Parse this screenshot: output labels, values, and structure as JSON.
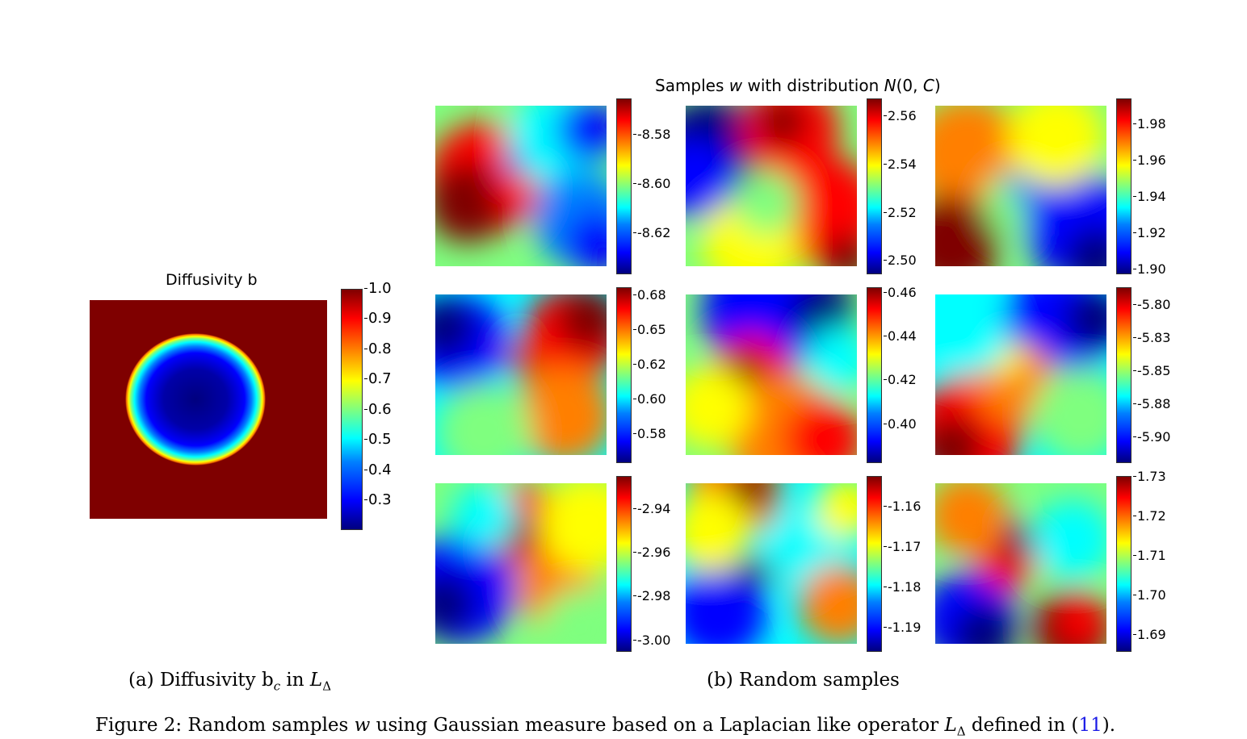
{
  "figure": {
    "panel_b_title": "Samples w with distribution N(0, C)",
    "panel_a_caption": "(a) Diffusivity b_c in L_Δ",
    "panel_b_caption": "(b) Random samples",
    "figure_caption_prefix": "Figure 2: Random samples w using Gaussian measure based on a Laplacian like operator L_Δ defined in (",
    "figure_caption_ref": "11",
    "figure_caption_suffix": ")."
  },
  "diffusivity": {
    "title": "Diffusivity b",
    "colorbar_ticks": [
      "1.0",
      "0.9",
      "0.8",
      "0.7",
      "0.6",
      "0.5",
      "0.4",
      "0.3"
    ],
    "colorbar_range": [
      0.2,
      1.0
    ],
    "inner_value": 0.2,
    "outer_value": 1.0
  },
  "samples": [
    {
      "ticks": [
        "-8.58",
        "-8.60",
        "-8.62"
      ]
    },
    {
      "ticks": [
        "2.56",
        "2.54",
        "2.52",
        "2.50"
      ]
    },
    {
      "ticks": [
        "1.98",
        "1.96",
        "1.94",
        "1.92",
        "1.90"
      ]
    },
    {
      "ticks": [
        "0.68",
        "0.65",
        "0.62",
        "0.60",
        "0.58"
      ]
    },
    {
      "ticks": [
        "0.46",
        "0.44",
        "0.42",
        "0.40"
      ]
    },
    {
      "ticks": [
        "-5.80",
        "-5.83",
        "-5.85",
        "-5.88",
        "-5.90"
      ]
    },
    {
      "ticks": [
        "-2.94",
        "-2.96",
        "-2.98",
        "-3.00"
      ]
    },
    {
      "ticks": [
        "-1.16",
        "-1.17",
        "-1.18",
        "-1.19"
      ]
    },
    {
      "ticks": [
        "1.73",
        "1.72",
        "1.71",
        "1.70",
        "1.69"
      ]
    }
  ],
  "colors": {
    "jet_dark_red": "#7f0000",
    "jet_red": "#ff0000",
    "jet_orange": "#ff7f00",
    "jet_yellow": "#ffff00",
    "jet_green": "#7fff7f",
    "jet_cyan": "#00ffff",
    "jet_light_blue": "#007fff",
    "jet_blue": "#0000ff",
    "jet_dark_blue": "#00007f",
    "link": "#1a1ae6"
  }
}
